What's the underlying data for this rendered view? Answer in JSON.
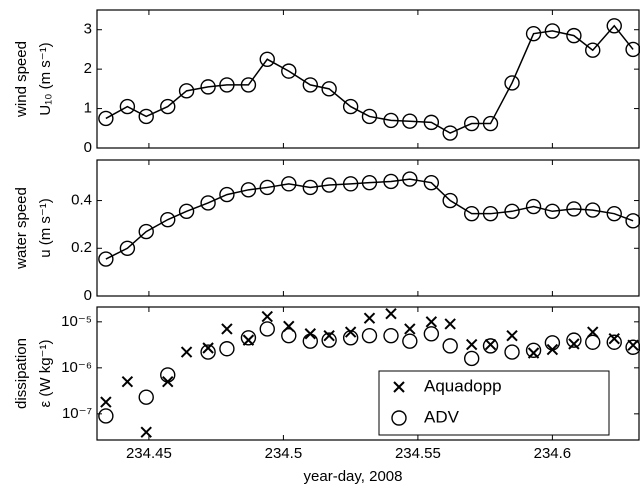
{
  "chart_data": [
    {
      "type": "line",
      "ylabel": [
        "wind speed",
        "U₁₀ (m s⁻¹)"
      ],
      "color": "#000000",
      "marker": "o",
      "x": [
        234.434,
        234.442,
        234.449,
        234.457,
        234.464,
        234.472,
        234.479,
        234.487,
        234.494,
        234.502,
        234.51,
        234.517,
        234.525,
        234.532,
        234.54,
        234.547,
        234.555,
        234.562,
        234.57,
        234.577,
        234.585,
        234.593,
        234.6,
        234.608,
        234.615,
        234.623,
        234.63
      ],
      "values": [
        0.75,
        1.05,
        0.8,
        1.05,
        1.45,
        1.55,
        1.6,
        1.6,
        2.25,
        1.95,
        1.6,
        1.5,
        1.05,
        0.8,
        0.7,
        0.68,
        0.65,
        0.38,
        0.62,
        0.62,
        1.65,
        2.9,
        2.97,
        2.85,
        2.48,
        3.1,
        2.5
      ],
      "ylim": [
        0,
        3.5
      ],
      "yticks": [
        0,
        1,
        2,
        3
      ]
    },
    {
      "type": "line",
      "ylabel": [
        "water speed",
        "u (m s⁻¹)"
      ],
      "color": "#000000",
      "marker": "o",
      "x": [
        234.434,
        234.442,
        234.449,
        234.457,
        234.464,
        234.472,
        234.479,
        234.487,
        234.494,
        234.502,
        234.51,
        234.517,
        234.525,
        234.532,
        234.54,
        234.547,
        234.555,
        234.562,
        234.57,
        234.577,
        234.585,
        234.593,
        234.6,
        234.608,
        234.615,
        234.623,
        234.63
      ],
      "values": [
        0.155,
        0.2,
        0.27,
        0.32,
        0.355,
        0.39,
        0.425,
        0.445,
        0.455,
        0.47,
        0.455,
        0.465,
        0.47,
        0.475,
        0.48,
        0.49,
        0.475,
        0.4,
        0.345,
        0.345,
        0.355,
        0.375,
        0.355,
        0.365,
        0.36,
        0.345,
        0.315
      ],
      "ylim": [
        0,
        0.57
      ],
      "yticks": [
        0,
        0.2,
        0.4
      ]
    },
    {
      "type": "scatter",
      "ylabel": [
        "dissipation",
        "ε (W kg⁻¹)"
      ],
      "xlabel": "year-day, 2008",
      "log_y": true,
      "legend": "lower right",
      "x": [
        234.434,
        234.442,
        234.449,
        234.457,
        234.464,
        234.472,
        234.479,
        234.487,
        234.494,
        234.502,
        234.51,
        234.517,
        234.525,
        234.532,
        234.54,
        234.547,
        234.555,
        234.562,
        234.57,
        234.577,
        234.585,
        234.593,
        234.6,
        234.608,
        234.615,
        234.623,
        234.63
      ],
      "series": [
        {
          "name": "Aquadopp",
          "color": "#000000",
          "marker": "x",
          "values": [
            1.8e-07,
            5e-07,
            4e-08,
            5e-07,
            2.2e-06,
            2.7e-06,
            7e-06,
            4e-06,
            1.3e-05,
            8e-06,
            5.5e-06,
            5e-06,
            6e-06,
            1.2e-05,
            1.5e-05,
            7e-06,
            1e-05,
            9e-06,
            3.2e-06,
            3.2e-06,
            5e-06,
            2.1e-06,
            2.5e-06,
            3.3e-06,
            6e-06,
            4.3e-06,
            3.1e-06
          ]
        },
        {
          "name": "ADV",
          "color": "#000000",
          "marker": "o",
          "values": [
            9e-08,
            null,
            2.3e-07,
            7e-07,
            null,
            2.2e-06,
            2.6e-06,
            4.5e-06,
            7e-06,
            5e-06,
            3.8e-06,
            4e-06,
            4.5e-06,
            5e-06,
            5e-06,
            3.8e-06,
            5.5e-06,
            3e-06,
            1.6e-06,
            3e-06,
            2.2e-06,
            2.4e-06,
            3.5e-06,
            4e-06,
            3.6e-06,
            3.6e-06,
            2.8e-06
          ]
        }
      ],
      "xlim": [
        234.4307,
        234.6322
      ],
      "xticks": [
        234.45,
        234.5,
        234.55,
        234.6
      ],
      "ylim": [
        2.7e-08,
        2.1e-05
      ],
      "yticks": [
        {
          "value": 1e-07,
          "label": "10⁻⁷"
        },
        {
          "value": 1e-06,
          "label": "10⁻⁶"
        },
        {
          "value": 1e-05,
          "label": "10⁻⁵"
        }
      ]
    }
  ]
}
